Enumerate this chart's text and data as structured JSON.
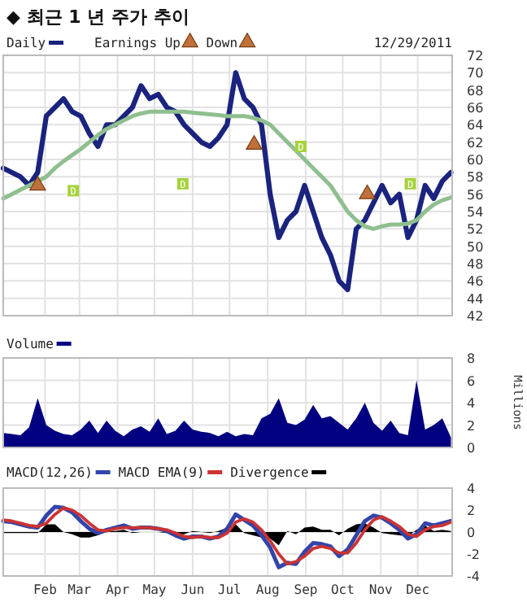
{
  "chart_data": [
    {
      "type": "line",
      "title": "◆ 최근 1 년 주가 추이",
      "subtitle": "12/29/2011",
      "x": [
        "2010-12-29",
        "2011-01-05",
        "2011-01-12",
        "2011-01-19",
        "2011-01-26",
        "2011-02-02",
        "2011-02-09",
        "2011-02-16",
        "2011-02-23",
        "2011-03-02",
        "2011-03-09",
        "2011-03-16",
        "2011-03-23",
        "2011-03-30",
        "2011-04-06",
        "2011-04-13",
        "2011-04-20",
        "2011-04-27",
        "2011-05-04",
        "2011-05-11",
        "2011-05-18",
        "2011-05-25",
        "2011-06-01",
        "2011-06-08",
        "2011-06-15",
        "2011-06-22",
        "2011-06-29",
        "2011-07-06",
        "2011-07-13",
        "2011-07-20",
        "2011-07-27",
        "2011-08-03",
        "2011-08-10",
        "2011-08-17",
        "2011-08-24",
        "2011-08-31",
        "2011-09-07",
        "2011-09-14",
        "2011-09-21",
        "2011-09-28",
        "2011-10-05",
        "2011-10-12",
        "2011-10-19",
        "2011-10-26",
        "2011-11-02",
        "2011-11-09",
        "2011-11-16",
        "2011-11-23",
        "2011-11-30",
        "2011-12-07",
        "2011-12-14",
        "2011-12-21",
        "2011-12-28"
      ],
      "xlim": [
        "2010-12-29",
        "2011-12-29"
      ],
      "xticks": [
        {
          "value": "2011-02-01",
          "label": null
        },
        {
          "value": "2011-03-01",
          "label": null
        },
        {
          "value": "2011-04-01",
          "label": null
        },
        {
          "value": "2011-05-01",
          "label": null
        },
        {
          "value": "2011-06-01",
          "label": null
        },
        {
          "value": "2011-07-01",
          "label": null
        },
        {
          "value": "2011-08-01",
          "label": null
        },
        {
          "value": "2011-09-01",
          "label": null
        },
        {
          "value": "2011-10-01",
          "label": null
        },
        {
          "value": "2011-11-01",
          "label": null
        },
        {
          "value": "2011-12-01",
          "label": null
        }
      ],
      "ylim": [
        42,
        72
      ],
      "yticks": [
        42,
        44,
        46,
        48,
        50,
        52,
        54,
        56,
        58,
        60,
        62,
        64,
        66,
        68,
        70,
        72
      ],
      "grid": true,
      "legend": "top",
      "tick_labels": "y",
      "series": [
        {
          "name": "Daily",
          "color": "#1a237e",
          "values": [
            59,
            58.5,
            58,
            57,
            58.5,
            65,
            66,
            67,
            65.5,
            65,
            63,
            61.5,
            64,
            64,
            65,
            66,
            68.5,
            67,
            67.5,
            66,
            65.5,
            64,
            63,
            62,
            61.5,
            62.5,
            64,
            70,
            67,
            66,
            64,
            56,
            51,
            53,
            54,
            57,
            54,
            51,
            49,
            46,
            45,
            52,
            53,
            55,
            57,
            55,
            56,
            51,
            53,
            57,
            55.5,
            57.5,
            58.5
          ]
        },
        {
          "color": "#8fbf8f",
          "values": [
            55.5,
            56,
            56.5,
            57,
            57.5,
            58,
            59,
            59.8,
            60.5,
            61.2,
            62,
            62.8,
            63.5,
            64,
            64.5,
            65,
            65.3,
            65.5,
            65.5,
            65.5,
            65.5,
            65.5,
            65.4,
            65.3,
            65.2,
            65.1,
            65,
            65,
            65,
            64.8,
            64.5,
            64,
            63,
            62,
            61,
            60,
            59,
            58,
            57,
            55.5,
            54,
            53,
            52.3,
            52,
            52.3,
            52.5,
            52.5,
            52.6,
            53,
            54,
            54.8,
            55.3,
            55.6
          ]
        },
        {
          "name": "Earnings Up",
          "type": "scatter",
          "marker": "triangle",
          "color": "#c0703a",
          "x": [
            "2011-01-26",
            "2011-07-21"
          ],
          "values": [
            57,
            61.7
          ]
        },
        {
          "name": "Down",
          "type": "scatter",
          "marker": "triangle",
          "color": "#c0703a",
          "x": [
            "2011-10-21"
          ],
          "values": [
            56
          ]
        }
      ],
      "annotations": [
        {
          "text": "D",
          "x": "2011-02-24",
          "y": 56.4
        },
        {
          "text": "D",
          "x": "2011-05-24",
          "y": 57.2
        },
        {
          "text": "D",
          "x": "2011-08-28",
          "y": 61.5
        },
        {
          "text": "D",
          "x": "2011-11-25",
          "y": 57.2
        }
      ]
    },
    {
      "type": "area",
      "ylabel": "Millions",
      "x": [
        "2010-12-29",
        "2011-01-05",
        "2011-01-12",
        "2011-01-19",
        "2011-01-26",
        "2011-02-02",
        "2011-02-09",
        "2011-02-16",
        "2011-02-23",
        "2011-03-02",
        "2011-03-09",
        "2011-03-16",
        "2011-03-23",
        "2011-03-30",
        "2011-04-06",
        "2011-04-13",
        "2011-04-20",
        "2011-04-27",
        "2011-05-04",
        "2011-05-11",
        "2011-05-18",
        "2011-05-25",
        "2011-06-01",
        "2011-06-08",
        "2011-06-15",
        "2011-06-22",
        "2011-06-29",
        "2011-07-06",
        "2011-07-13",
        "2011-07-20",
        "2011-07-27",
        "2011-08-03",
        "2011-08-10",
        "2011-08-17",
        "2011-08-24",
        "2011-08-31",
        "2011-09-07",
        "2011-09-14",
        "2011-09-21",
        "2011-09-28",
        "2011-10-05",
        "2011-10-12",
        "2011-10-19",
        "2011-10-26",
        "2011-11-02",
        "2011-11-09",
        "2011-11-16",
        "2011-11-23",
        "2011-11-30",
        "2011-12-07",
        "2011-12-14",
        "2011-12-21",
        "2011-12-28"
      ],
      "xlim": [
        "2010-12-29",
        "2011-12-29"
      ],
      "xticks": [
        {
          "value": "2011-02-01",
          "label": null
        },
        {
          "value": "2011-03-01",
          "label": null
        },
        {
          "value": "2011-04-01",
          "label": null
        },
        {
          "value": "2011-05-01",
          "label": null
        },
        {
          "value": "2011-06-01",
          "label": null
        },
        {
          "value": "2011-07-01",
          "label": null
        },
        {
          "value": "2011-08-01",
          "label": null
        },
        {
          "value": "2011-09-01",
          "label": null
        },
        {
          "value": "2011-10-01",
          "label": null
        },
        {
          "value": "2011-11-01",
          "label": null
        },
        {
          "value": "2011-12-01",
          "label": null
        }
      ],
      "ylim": [
        0,
        8
      ],
      "yticks": [
        0,
        2,
        4,
        6,
        8
      ],
      "grid": true,
      "legend": "top left",
      "tick_labels": "y",
      "series": [
        {
          "name": "Volume",
          "color": "#000080",
          "values": [
            1.3,
            1.2,
            1.1,
            1.8,
            4.4,
            2.0,
            1.5,
            1.2,
            1.1,
            1.6,
            2.4,
            1.3,
            2.4,
            1.5,
            1.0,
            1.6,
            1.9,
            1.4,
            2.6,
            1.2,
            1.5,
            2.4,
            1.6,
            1.4,
            1.3,
            1.0,
            1.4,
            1.0,
            1.2,
            1.1,
            2.6,
            3.0,
            4.4,
            2.2,
            2.0,
            2.5,
            3.8,
            2.6,
            2.8,
            2.2,
            1.6,
            2.6,
            4.0,
            2.2,
            1.5,
            2.4,
            1.3,
            1.1,
            6.0,
            1.6,
            2.0,
            2.6,
            0.9
          ]
        }
      ]
    },
    {
      "type": "line",
      "x": [
        "2010-12-29",
        "2011-01-05",
        "2011-01-12",
        "2011-01-19",
        "2011-01-26",
        "2011-02-02",
        "2011-02-09",
        "2011-02-16",
        "2011-02-23",
        "2011-03-02",
        "2011-03-09",
        "2011-03-16",
        "2011-03-23",
        "2011-03-30",
        "2011-04-06",
        "2011-04-13",
        "2011-04-20",
        "2011-04-27",
        "2011-05-04",
        "2011-05-11",
        "2011-05-18",
        "2011-05-25",
        "2011-06-01",
        "2011-06-08",
        "2011-06-15",
        "2011-06-22",
        "2011-06-29",
        "2011-07-06",
        "2011-07-13",
        "2011-07-20",
        "2011-07-27",
        "2011-08-03",
        "2011-08-10",
        "2011-08-17",
        "2011-08-24",
        "2011-08-31",
        "2011-09-07",
        "2011-09-14",
        "2011-09-21",
        "2011-09-28",
        "2011-10-05",
        "2011-10-12",
        "2011-10-19",
        "2011-10-26",
        "2011-11-02",
        "2011-11-09",
        "2011-11-16",
        "2011-11-23",
        "2011-11-30",
        "2011-12-07",
        "2011-12-14",
        "2011-12-21",
        "2011-12-28"
      ],
      "xlim": [
        "2010-12-29",
        "2011-12-29"
      ],
      "xticks": [
        {
          "value": "2011-02-01",
          "label": "Feb"
        },
        {
          "value": "2011-03-01",
          "label": "Mar"
        },
        {
          "value": "2011-04-01",
          "label": "Apr"
        },
        {
          "value": "2011-05-01",
          "label": "May"
        },
        {
          "value": "2011-06-01",
          "label": "Jun"
        },
        {
          "value": "2011-07-01",
          "label": "Jul"
        },
        {
          "value": "2011-08-01",
          "label": "Aug"
        },
        {
          "value": "2011-09-01",
          "label": "Sep"
        },
        {
          "value": "2011-10-01",
          "label": "Oct"
        },
        {
          "value": "2011-11-01",
          "label": "Nov"
        },
        {
          "value": "2011-12-01",
          "label": "Dec"
        }
      ],
      "ylim": [
        -4,
        4
      ],
      "yticks": [
        -4,
        -2,
        0,
        2,
        4
      ],
      "grid": true,
      "legend": "top left",
      "series": [
        {
          "name": "MACD(12,26)",
          "color": "#3344aa",
          "values": [
            1.0,
            0.9,
            0.7,
            0.5,
            0.4,
            1.5,
            2.3,
            2.2,
            1.8,
            1.0,
            0.3,
            -0.1,
            0.2,
            0.4,
            0.6,
            0.3,
            0.4,
            0.4,
            0.3,
            0.1,
            -0.3,
            -0.6,
            -0.4,
            -0.4,
            -0.6,
            -0.4,
            0.3,
            1.6,
            1.1,
            0.6,
            -0.3,
            -1.4,
            -3.2,
            -2.8,
            -2.9,
            -1.8,
            -1.0,
            -1.1,
            -1.3,
            -2.2,
            -1.6,
            -0.3,
            1.0,
            1.5,
            1.3,
            0.8,
            0.2,
            -0.6,
            -0.2,
            0.8,
            0.6,
            0.8,
            1.0
          ]
        },
        {
          "name": "MACD EMA(9)",
          "color": "#cc3333",
          "values": [
            1.1,
            1.0,
            0.8,
            0.6,
            0.5,
            0.8,
            1.6,
            2.2,
            2.0,
            1.5,
            0.8,
            0.2,
            0.1,
            0.3,
            0.4,
            0.4,
            0.4,
            0.4,
            0.3,
            0.2,
            -0.1,
            -0.4,
            -0.5,
            -0.4,
            -0.5,
            -0.5,
            -0.1,
            0.9,
            1.2,
            0.9,
            0.2,
            -0.8,
            -2.0,
            -2.9,
            -2.7,
            -2.2,
            -1.5,
            -1.3,
            -1.5,
            -1.9,
            -1.9,
            -1.0,
            0.2,
            1.1,
            1.4,
            1.0,
            0.5,
            -0.2,
            -0.4,
            0.2,
            0.5,
            0.6,
            0.9
          ]
        },
        {
          "name": "Divergence",
          "type": "area",
          "color": "#000000",
          "values": [
            -0.1,
            -0.1,
            -0.1,
            -0.1,
            -0.1,
            0.7,
            0.7,
            0,
            -0.2,
            -0.5,
            -0.5,
            -0.3,
            0.1,
            0.1,
            0.2,
            -0.1,
            0,
            0,
            0,
            -0.1,
            -0.2,
            -0.2,
            0.1,
            0,
            -0.1,
            0.1,
            0.4,
            0.7,
            -0.1,
            -0.3,
            -0.5,
            -0.6,
            -1.2,
            0.1,
            -0.2,
            0.4,
            0.5,
            0.2,
            0.2,
            -0.3,
            0.3,
            0.7,
            0.8,
            0.4,
            -0.1,
            -0.2,
            -0.3,
            -0.4,
            0.2,
            0.6,
            0.1,
            0.2,
            0.1
          ]
        }
      ]
    }
  ]
}
